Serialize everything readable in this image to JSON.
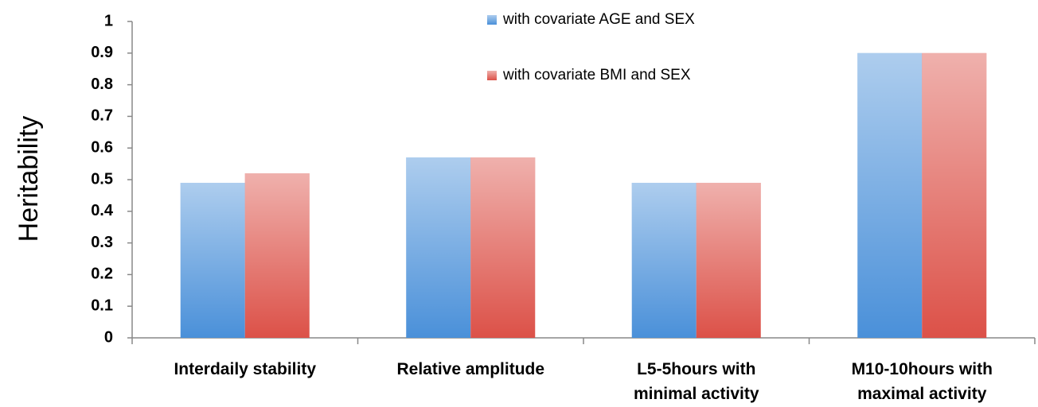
{
  "chart_data": {
    "type": "bar",
    "y_label": "Heritability",
    "categories": [
      "Interdaily stability",
      "Relative amplitude",
      "L5-5hours with\nminimal activity",
      "M10-10hours with\nmaximal activity"
    ],
    "series": [
      {
        "name": "with covariate AGE and SEX",
        "color": "#4a90d9",
        "values": [
          0.49,
          0.57,
          0.49,
          0.9
        ]
      },
      {
        "name": "with covariate BMI and SEX",
        "color": "#dc5148",
        "values": [
          0.52,
          0.57,
          0.49,
          0.9
        ]
      }
    ],
    "ylim": [
      0,
      1
    ],
    "yticks": [
      0,
      0.1,
      0.2,
      0.3,
      0.4,
      0.5,
      0.6,
      0.7,
      0.8,
      0.9,
      1
    ],
    "legend": "top"
  }
}
